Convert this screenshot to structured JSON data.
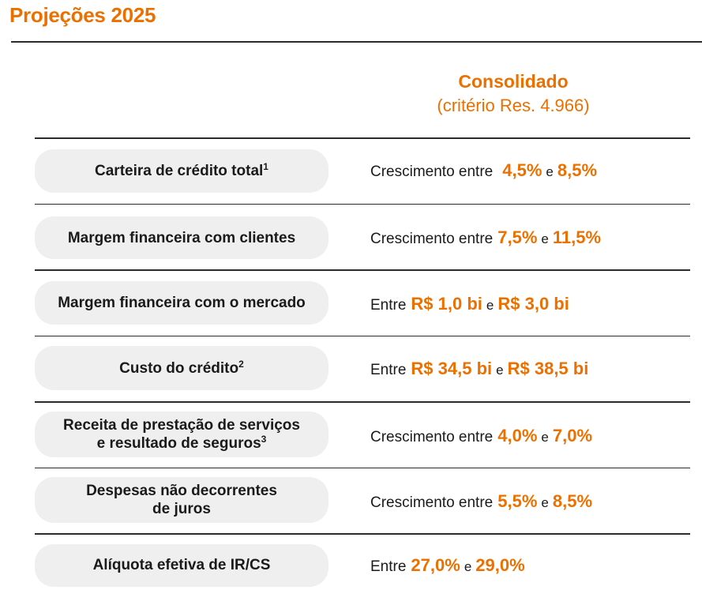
{
  "header": {
    "title": "Projeções 2025"
  },
  "column": {
    "title": "Consolidado",
    "subtitle": "(critério Res. 4.966)"
  },
  "rows": [
    {
      "label_lines": [
        "Carteira de crédito total"
      ],
      "footnote": "1",
      "prefix": "Crescimento entre",
      "low": "4,5%",
      "conj": "e",
      "high": "8,5%"
    },
    {
      "label_lines": [
        "Margem financeira com clientes"
      ],
      "footnote": "",
      "prefix": "Crescimento entre",
      "low": "7,5%",
      "conj": "e",
      "high": "11,5%"
    },
    {
      "label_lines": [
        "Margem financeira com o mercado"
      ],
      "footnote": "",
      "prefix": "Entre",
      "low": "R$ 1,0 bi",
      "conj": "e",
      "high": "R$ 3,0 bi"
    },
    {
      "label_lines": [
        "Custo do crédito"
      ],
      "footnote": "2",
      "prefix": "Entre",
      "low": "R$ 34,5 bi",
      "conj": "e",
      "high": "R$ 38,5 bi"
    },
    {
      "label_lines": [
        "Receita de prestação de serviços",
        "e resultado de seguros"
      ],
      "footnote": "3",
      "prefix": "Crescimento entre",
      "low": "4,0%",
      "conj": "e",
      "high": "7,0%"
    },
    {
      "label_lines": [
        "Despesas não decorrentes",
        "de juros"
      ],
      "footnote": "",
      "prefix": "Crescimento entre",
      "low": "5,5%",
      "conj": "e",
      "high": "8,5%"
    },
    {
      "label_lines": [
        "Alíquota efetiva de IR/CS"
      ],
      "footnote": "",
      "prefix": "Entre",
      "low": "27,0%",
      "conj": "e",
      "high": "29,0%"
    }
  ],
  "colors": {
    "accent": "#ec7000",
    "pill": "#efefef",
    "rule": "#2b2b2b"
  }
}
